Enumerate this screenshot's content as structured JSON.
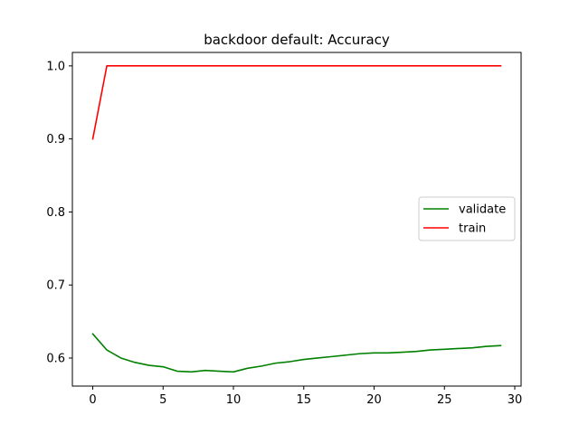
{
  "chart_data": {
    "type": "line",
    "title": "backdoor default: Accuracy",
    "xlabel": "",
    "ylabel": "",
    "xlim": [
      -1.45,
      30.45
    ],
    "ylim": [
      0.5616,
      1.0184
    ],
    "xticks": [
      0,
      5,
      10,
      15,
      20,
      25,
      30
    ],
    "yticks": [
      0.6,
      0.7,
      0.8,
      0.9,
      1.0
    ],
    "xtick_labels": [
      "0",
      "5",
      "10",
      "15",
      "20",
      "25",
      "30"
    ],
    "ytick_labels": [
      "0.6",
      "0.7",
      "0.8",
      "0.9",
      "1.0"
    ],
    "grid": false,
    "legend_position": "center-right",
    "series": [
      {
        "name": "validate",
        "color": "#008000",
        "x": [
          0,
          1,
          2,
          3,
          4,
          5,
          6,
          7,
          8,
          9,
          10,
          11,
          12,
          13,
          14,
          15,
          16,
          17,
          18,
          19,
          20,
          21,
          22,
          23,
          24,
          25,
          26,
          27,
          28,
          29
        ],
        "y": [
          0.633,
          0.611,
          0.6,
          0.594,
          0.59,
          0.588,
          0.582,
          0.581,
          0.583,
          0.582,
          0.581,
          0.586,
          0.589,
          0.593,
          0.595,
          0.598,
          0.6,
          0.602,
          0.604,
          0.606,
          0.607,
          0.607,
          0.608,
          0.609,
          0.611,
          0.612,
          0.613,
          0.614,
          0.616,
          0.617
        ]
      },
      {
        "name": "train",
        "color": "#ff0000",
        "x": [
          0,
          1,
          2,
          3,
          4,
          5,
          6,
          7,
          8,
          9,
          10,
          11,
          12,
          13,
          14,
          15,
          16,
          17,
          18,
          19,
          20,
          21,
          22,
          23,
          24,
          25,
          26,
          27,
          28,
          29
        ],
        "y": [
          0.9,
          1.0,
          1.0,
          1.0,
          1.0,
          1.0,
          1.0,
          1.0,
          1.0,
          1.0,
          1.0,
          1.0,
          1.0,
          1.0,
          1.0,
          1.0,
          1.0,
          1.0,
          1.0,
          1.0,
          1.0,
          1.0,
          1.0,
          1.0,
          1.0,
          1.0,
          1.0,
          1.0,
          1.0,
          1.0
        ]
      }
    ]
  }
}
